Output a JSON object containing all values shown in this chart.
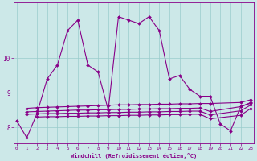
{
  "xlabel": "Windchill (Refroidissement éolien,°C)",
  "bg_color": "#cce8e8",
  "line_color": "#880088",
  "grid_color": "#99cccc",
  "main_line_x": [
    0,
    1,
    2,
    3,
    4,
    5,
    6,
    7,
    8,
    9,
    10,
    11,
    12,
    13,
    14,
    15,
    16,
    17,
    18,
    19,
    20,
    21,
    22,
    23
  ],
  "main_line_y": [
    8.2,
    7.7,
    8.4,
    9.4,
    9.8,
    10.8,
    11.1,
    9.8,
    9.6,
    8.5,
    11.2,
    11.1,
    11.0,
    11.2,
    10.8,
    9.4,
    9.5,
    9.1,
    8.9,
    8.9,
    8.1,
    7.9,
    8.6,
    8.7
  ],
  "flat1_x": [
    1,
    2,
    3,
    4,
    5,
    6,
    7,
    8,
    9,
    10,
    11,
    12,
    13,
    14,
    15,
    16,
    17,
    18,
    19,
    22,
    23
  ],
  "flat1_y": [
    8.55,
    8.57,
    8.58,
    8.59,
    8.6,
    8.61,
    8.62,
    8.63,
    8.64,
    8.65,
    8.65,
    8.66,
    8.66,
    8.67,
    8.67,
    8.68,
    8.68,
    8.69,
    8.69,
    8.72,
    8.8
  ],
  "flat2_x": [
    1,
    2,
    3,
    4,
    5,
    6,
    7,
    8,
    9,
    10,
    11,
    12,
    13,
    14,
    15,
    16,
    17,
    18,
    19,
    22,
    23
  ],
  "flat2_y": [
    8.45,
    8.46,
    8.47,
    8.48,
    8.49,
    8.5,
    8.5,
    8.51,
    8.51,
    8.52,
    8.52,
    8.53,
    8.53,
    8.54,
    8.54,
    8.55,
    8.55,
    8.56,
    8.46,
    8.6,
    8.72
  ],
  "flat3_x": [
    1,
    2,
    3,
    4,
    5,
    6,
    7,
    8,
    9,
    10,
    11,
    12,
    13,
    14,
    15,
    16,
    17,
    18,
    19,
    22,
    23
  ],
  "flat3_y": [
    8.38,
    8.39,
    8.4,
    8.4,
    8.41,
    8.41,
    8.42,
    8.42,
    8.43,
    8.43,
    8.44,
    8.44,
    8.45,
    8.45,
    8.46,
    8.46,
    8.47,
    8.47,
    8.36,
    8.48,
    8.65
  ],
  "flat4_x": [
    2,
    3,
    4,
    5,
    6,
    7,
    8,
    9,
    10,
    11,
    12,
    13,
    14,
    15,
    16,
    17,
    18,
    19,
    22,
    23
  ],
  "flat4_y": [
    8.3,
    8.31,
    8.31,
    8.32,
    8.32,
    8.33,
    8.33,
    8.34,
    8.34,
    8.35,
    8.35,
    8.36,
    8.36,
    8.37,
    8.37,
    8.38,
    8.38,
    8.25,
    8.35,
    8.55
  ],
  "ylim": [
    7.55,
    11.6
  ],
  "yticks": [
    8,
    9,
    10
  ],
  "xlim": [
    -0.3,
    23.3
  ],
  "xticks": [
    0,
    1,
    2,
    3,
    4,
    5,
    6,
    7,
    8,
    9,
    10,
    11,
    12,
    13,
    14,
    15,
    16,
    17,
    18,
    19,
    20,
    21,
    22,
    23
  ]
}
